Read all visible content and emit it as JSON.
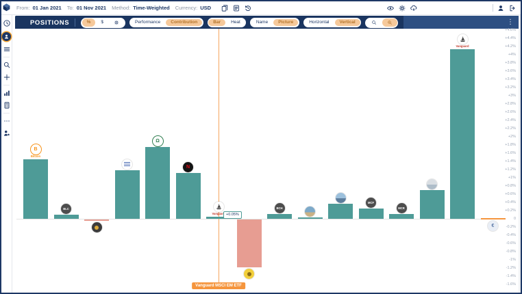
{
  "top_bar": {
    "filters": [
      {
        "label": "From:",
        "value": "01 Jan 2021"
      },
      {
        "label": "To:",
        "value": "01 Nov 2021"
      },
      {
        "label": "Method:",
        "value": "Time-Weighted"
      },
      {
        "label": "Currency:",
        "value": "USD"
      }
    ],
    "left_icons": [
      "reports-icon",
      "journal-icon",
      "history-icon"
    ],
    "view_icons": [
      "eye-icon",
      "settings-gear-icon",
      "cloud-sync-icon"
    ],
    "account_icons": [
      "user-icon",
      "logout-icon"
    ]
  },
  "sidebar": {
    "items": [
      {
        "icon": "clock-icon",
        "active": false
      },
      {
        "icon": "positions-person-icon",
        "active": true
      },
      {
        "icon": "list-icon",
        "active": false
      },
      {
        "icon": "search-icon",
        "active": false
      },
      {
        "icon": "plus-icon",
        "active": false
      },
      {
        "icon": "bar-chart-icon",
        "active": false
      },
      {
        "icon": "calculator-icon",
        "active": false
      },
      {
        "icon": "more-icon",
        "active": false
      },
      {
        "icon": "awards-icon",
        "active": false
      }
    ],
    "divider_after": [
      2,
      4,
      6
    ]
  },
  "header": {
    "title": "POSITIONS",
    "title_icon": "slash-circle-icon",
    "menu_icon": "kebab-menu-icon",
    "menu_glyph": "⋮",
    "groups": [
      {
        "name": "unit",
        "items": [
          {
            "label": "%",
            "active": true
          },
          {
            "label": "$",
            "active": false
          },
          {
            "icon": "gear-icon",
            "active": false
          }
        ]
      },
      {
        "name": "measure",
        "items": [
          {
            "label": "Performance",
            "active": false
          },
          {
            "label": "Contribution",
            "active": true
          }
        ]
      },
      {
        "name": "style",
        "items": [
          {
            "label": "Bar",
            "active": true
          },
          {
            "label": "Heat",
            "active": false
          }
        ]
      },
      {
        "name": "labeling",
        "items": [
          {
            "label": "Name",
            "active": false
          },
          {
            "label": "Picture",
            "active": true
          }
        ]
      },
      {
        "name": "orientation",
        "items": [
          {
            "label": "Horizontal",
            "active": false
          },
          {
            "label": "Vertical",
            "active": true
          }
        ]
      },
      {
        "name": "search",
        "items": [
          {
            "icon": "search-icon",
            "active": false
          },
          {
            "icon": "search-plus-icon",
            "active": true
          }
        ]
      }
    ]
  },
  "chart_data": {
    "type": "bar",
    "unit": "percent",
    "grid": false,
    "legend": "none",
    "axis": {
      "side": "right",
      "min": -1.6,
      "max": 4.6,
      "step": 0.2,
      "tick_labels": [
        "+4.6%",
        "+4.4%",
        "+4.2%",
        "+4%",
        "+3.8%",
        "+3.6%",
        "+3.4%",
        "+3.2%",
        "+3%",
        "+2.8%",
        "+2.6%",
        "+2.4%",
        "+2.2%",
        "+2%",
        "+1.8%",
        "+1.6%",
        "+1.4%",
        "+1.2%",
        "+1%",
        "+0.8%",
        "+0.6%",
        "+0.4%",
        "+0.2%",
        "0",
        "-0.2%",
        "-0.4%",
        "-0.6%",
        "-0.8%",
        "-1%",
        "-1.2%",
        "-1.4%",
        "-1.6%"
      ]
    },
    "categories": [
      "Bitcoin",
      "BLC",
      "",
      "",
      "",
      "N",
      "Vanguard",
      "",
      "BCH",
      "",
      "",
      "MCF",
      "MCR",
      "",
      "Vanguard",
      ""
    ],
    "values": [
      1.45,
      0.1,
      -0.03,
      1.18,
      1.75,
      1.12,
      0.05,
      -1.17,
      0.12,
      0.03,
      0.37,
      0.25,
      0.12,
      0.7,
      4.13,
      0.0
    ],
    "bars": [
      {
        "value_pct": 1.45,
        "logo": {
          "kind": "text",
          "text": "B",
          "bg": "#ffffff",
          "fg": "#f7931a",
          "ring": "#f7931a",
          "caption": "Bitcoin",
          "caption_color": "#f7931a"
        },
        "logo_pos": "above",
        "name": "bitcoin"
      },
      {
        "value_pct": 0.1,
        "logo": {
          "kind": "text",
          "text": "BLC",
          "bg": "#4d4d4d",
          "fg": "#ffffff"
        },
        "logo_pos": "above",
        "name": "blc"
      },
      {
        "value_pct": -0.03,
        "logo": {
          "kind": "disc",
          "bg": "#3c3c3c",
          "fg": "#d9a93a"
        },
        "logo_pos": "below",
        "name": "token"
      },
      {
        "value_pct": 1.18,
        "logo": {
          "kind": "lines",
          "bg": "#ffffff",
          "fg": "#4a69b2"
        },
        "logo_pos": "above",
        "name": "text-logo"
      },
      {
        "value_pct": 1.75,
        "logo": {
          "kind": "text",
          "text": "Ω",
          "bg": "#ffffff",
          "fg": "#2e7d4f",
          "ring": "#2e7d4f"
        },
        "logo_pos": "above",
        "name": "green-emblem"
      },
      {
        "value_pct": 1.12,
        "logo": {
          "kind": "text",
          "text": "N",
          "bg": "#141414",
          "fg": "#e50914"
        },
        "logo_pos": "above",
        "name": "netflix"
      },
      {
        "value_pct": 0.05,
        "logo": {
          "kind": "ship",
          "bg": "#ffffff",
          "fg": "#444444",
          "caption": "Vanguard",
          "caption_color": "#c0392b"
        },
        "logo_pos": "above",
        "name": "vanguard-em"
      },
      {
        "value_pct": -1.17,
        "logo": {
          "kind": "disc",
          "bg": "#f2cf3b",
          "fg": "#8a6d1a"
        },
        "logo_pos": "below",
        "name": "yellow-token"
      },
      {
        "value_pct": 0.12,
        "logo": {
          "kind": "text",
          "text": "BCH",
          "bg": "#4d4d4d",
          "fg": "#ffffff"
        },
        "logo_pos": "above",
        "name": "bch"
      },
      {
        "value_pct": 0.03,
        "logo": {
          "kind": "photo",
          "bg": "#7da9c9",
          "fg": "#c9b185"
        },
        "logo_pos": "above",
        "name": "photo-1"
      },
      {
        "value_pct": 0.37,
        "logo": {
          "kind": "photo",
          "bg": "#9cc0dc",
          "fg": "#5c7d9c"
        },
        "logo_pos": "above",
        "name": "photo-2"
      },
      {
        "value_pct": 0.25,
        "logo": {
          "kind": "text",
          "text": "MCF",
          "bg": "#4d4d4d",
          "fg": "#ffffff"
        },
        "logo_pos": "above",
        "name": "mcf"
      },
      {
        "value_pct": 0.12,
        "logo": {
          "kind": "text",
          "text": "MCR",
          "bg": "#4d4d4d",
          "fg": "#ffffff"
        },
        "logo_pos": "above",
        "name": "mcr"
      },
      {
        "value_pct": 0.7,
        "logo": {
          "kind": "photo",
          "bg": "#d9dee3",
          "fg": "#aebdc9"
        },
        "logo_pos": "above",
        "name": "globe"
      },
      {
        "value_pct": 4.13,
        "logo": {
          "kind": "ship",
          "bg": "#ffffff",
          "fg": "#444444",
          "caption": "Vanguard",
          "caption_color": "#c0392b"
        },
        "logo_pos": "above",
        "name": "vanguard-us"
      },
      {
        "value_pct": 0.0,
        "logo": {
          "kind": "text",
          "text": "€",
          "bg": "#e9eef6",
          "fg": "#5b79a8"
        },
        "logo_pos": "below",
        "name": "euro"
      }
    ],
    "colors": {
      "positive": "#4e9b97",
      "negative": "#e79d92",
      "zero_bar": "#f5953d",
      "crosshair": "#f6a55e"
    },
    "selected": {
      "index": 6,
      "value_label": "+0.05%",
      "tooltip": "Vanguard MSCI EM ETF"
    }
  }
}
